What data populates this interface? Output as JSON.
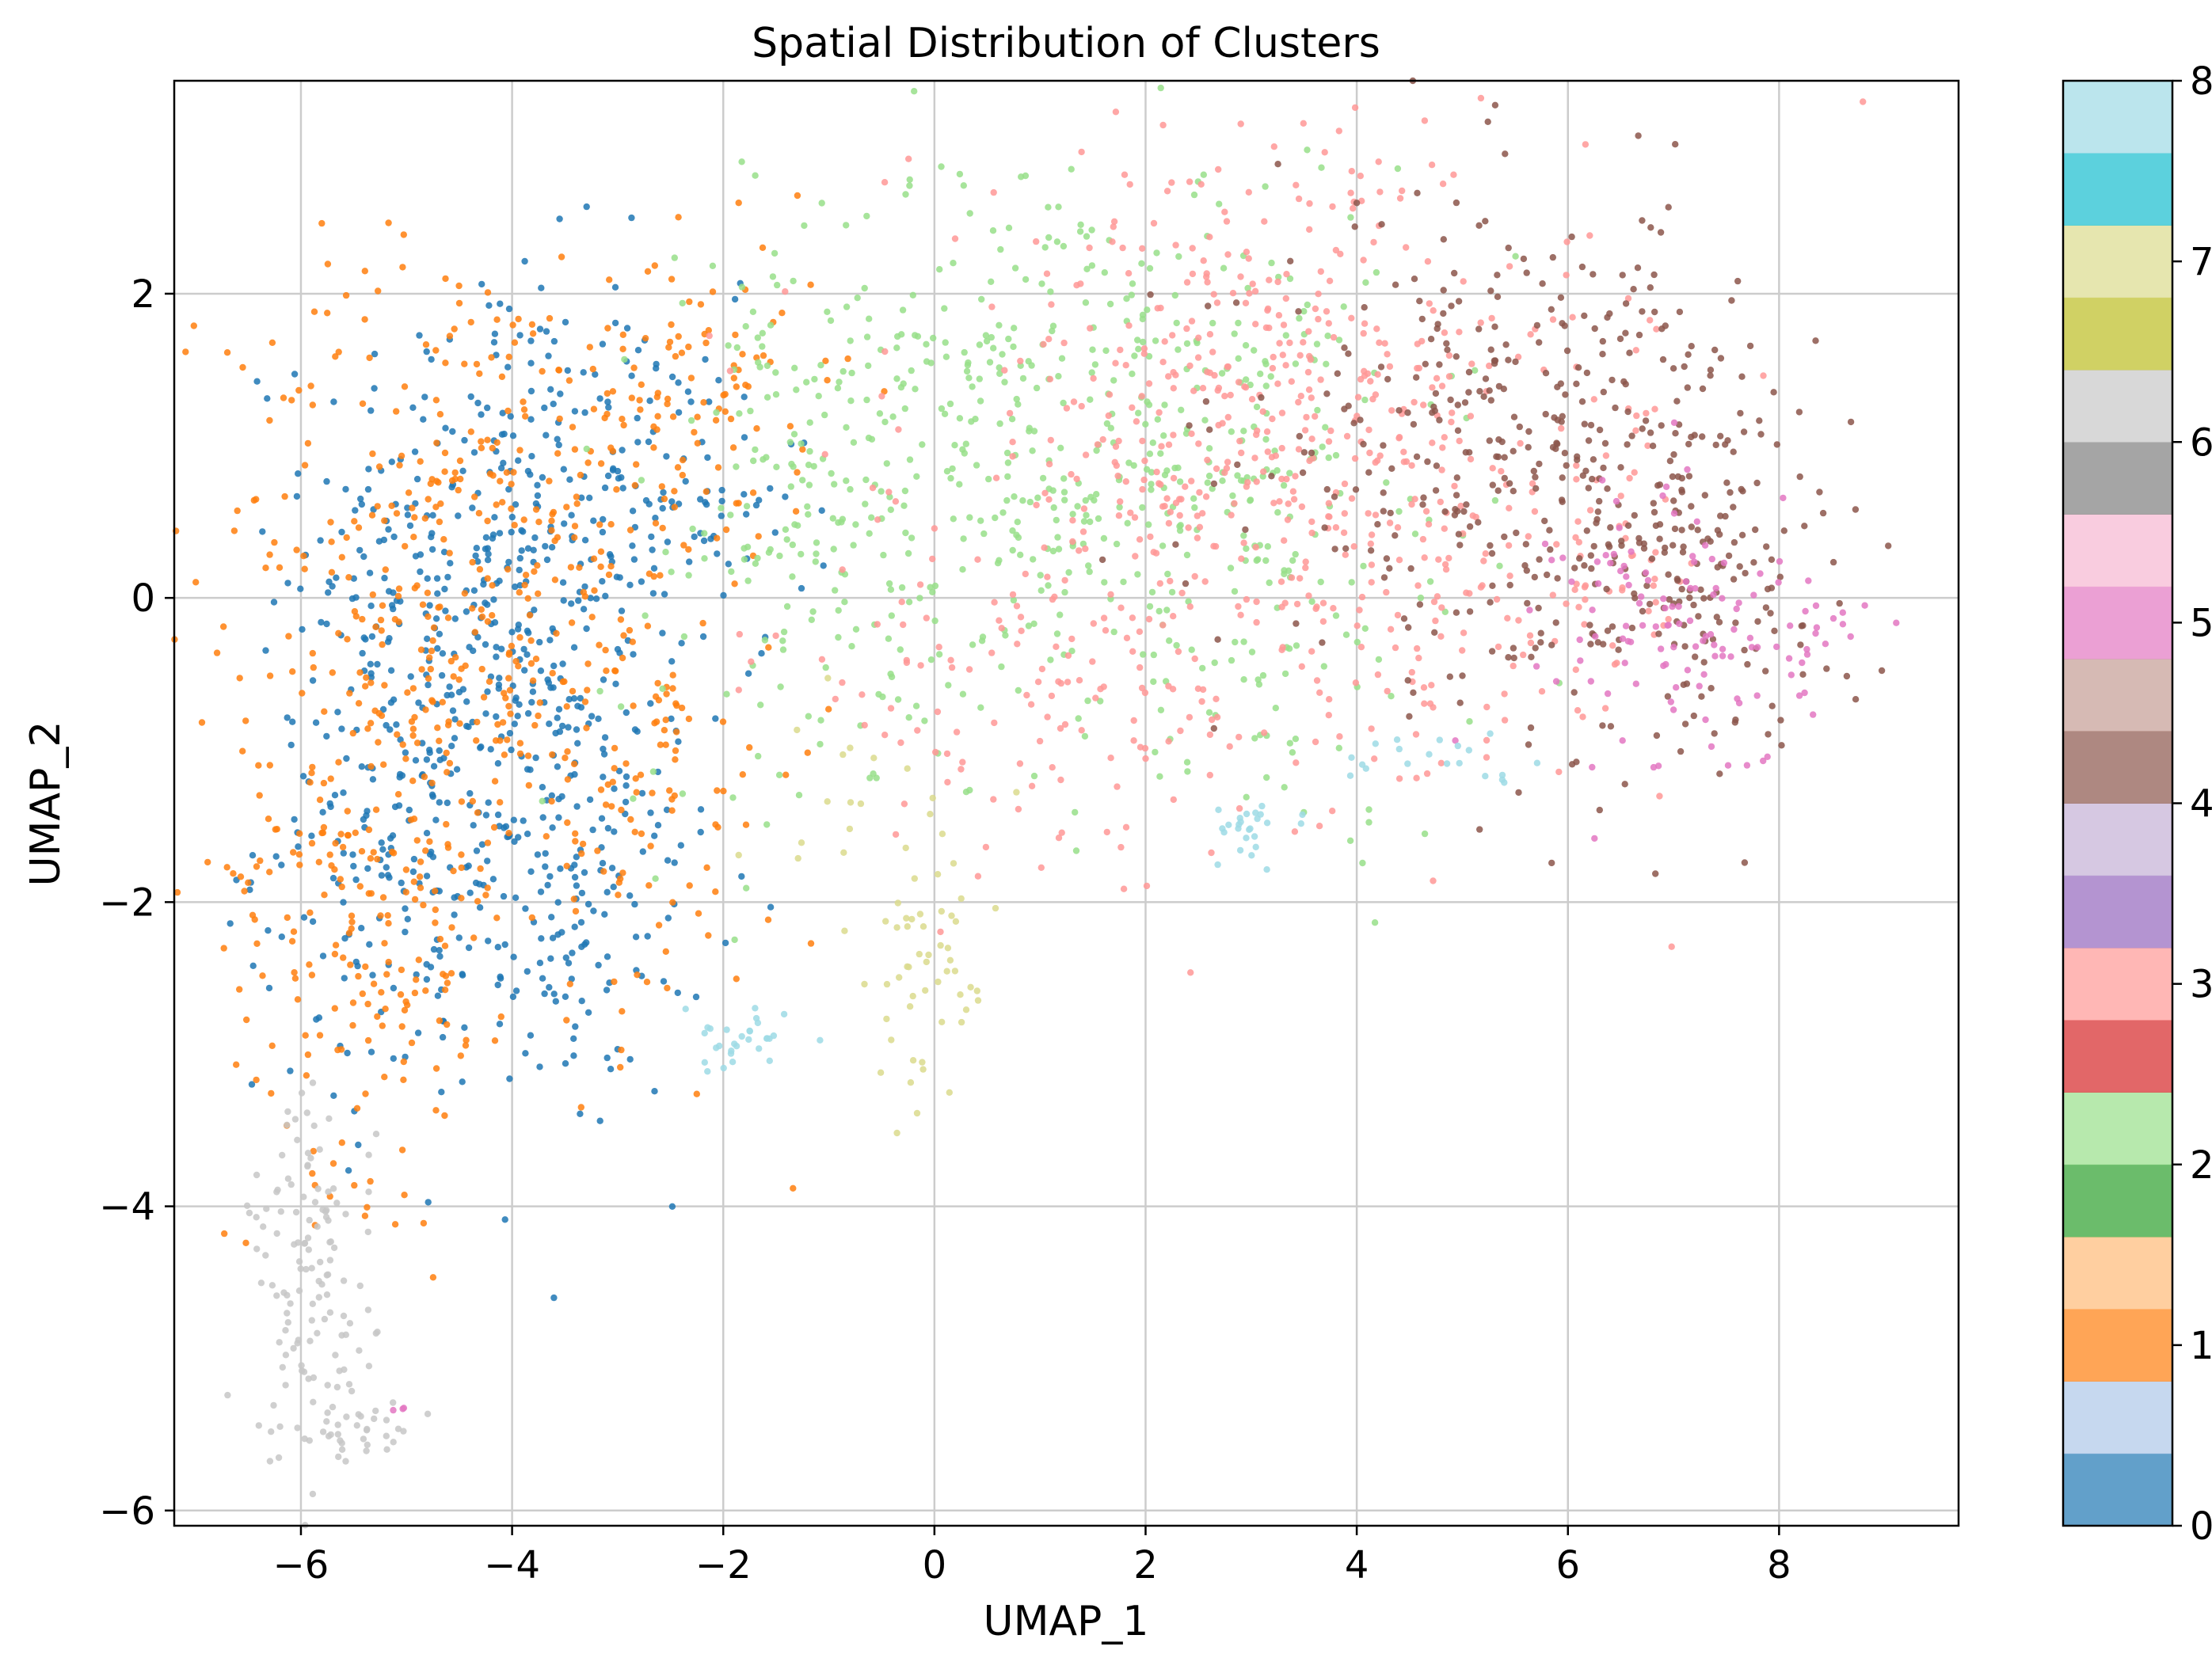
{
  "chart_data": {
    "type": "scatter",
    "title": "Spatial Distribution of Clusters",
    "xlabel": "UMAP_1",
    "ylabel": "UMAP_2",
    "xlim": [
      -7.2,
      9.7
    ],
    "ylim": [
      -6.1,
      3.4
    ],
    "xticks": [
      -6,
      -4,
      -2,
      0,
      2,
      4,
      6,
      8
    ],
    "yticks": [
      -6,
      -4,
      -2,
      0,
      2
    ],
    "grid": true,
    "colorbar": {
      "ticks": [
        0,
        1,
        2,
        3,
        4,
        5,
        6,
        7,
        8
      ],
      "range": [
        0,
        8
      ],
      "colormap": "tab20",
      "colors": [
        "#1f77b4",
        "#aec7e8",
        "#ff7f0e",
        "#ffbb78",
        "#2ca02c",
        "#98df8a",
        "#d62728",
        "#ff9896",
        "#9467bd",
        "#c5b0d5",
        "#8c564b",
        "#c49c94",
        "#e377c2",
        "#f7b6d2",
        "#7f7f7f",
        "#c7c7c7",
        "#bcbd22",
        "#dbdb8d",
        "#17becf",
        "#9edae5"
      ]
    },
    "series": [
      {
        "cluster": 0,
        "color": "#1f77b4",
        "regions": [
          {
            "cx": -4.1,
            "cy": 0.4,
            "sx": 0.9,
            "sy": 0.9,
            "n": 320
          },
          {
            "cx": -4.8,
            "cy": -1.5,
            "sx": 0.8,
            "sy": 0.9,
            "n": 280
          },
          {
            "cx": -3.3,
            "cy": -1.9,
            "sx": 0.6,
            "sy": 0.7,
            "n": 140
          },
          {
            "cx": -2.4,
            "cy": 0.6,
            "sx": 0.6,
            "sy": 0.6,
            "n": 80
          }
        ]
      },
      {
        "cluster": 1,
        "color": "#ff7f0e",
        "regions": [
          {
            "cx": -4.5,
            "cy": 0.6,
            "sx": 1.1,
            "sy": 0.9,
            "n": 260
          },
          {
            "cx": -5.3,
            "cy": -1.8,
            "sx": 0.7,
            "sy": 1.0,
            "n": 260
          },
          {
            "cx": -3.0,
            "cy": -1.0,
            "sx": 0.8,
            "sy": 1.0,
            "n": 160
          },
          {
            "cx": -2.2,
            "cy": 1.4,
            "sx": 0.6,
            "sy": 0.5,
            "n": 90
          }
        ]
      },
      {
        "cluster": 2,
        "color": "#98df8a",
        "regions": [
          {
            "cx": 1.2,
            "cy": 1.2,
            "sx": 1.5,
            "sy": 0.9,
            "n": 420
          },
          {
            "cx": -1.3,
            "cy": 0.4,
            "sx": 0.9,
            "sy": 1.0,
            "n": 140
          },
          {
            "cx": 2.8,
            "cy": 0.2,
            "sx": 1.2,
            "sy": 0.9,
            "n": 150
          }
        ]
      },
      {
        "cluster": 3,
        "color": "#ff9896",
        "regions": [
          {
            "cx": 3.0,
            "cy": 1.3,
            "sx": 1.6,
            "sy": 0.9,
            "n": 420
          },
          {
            "cx": 1.2,
            "cy": -0.6,
            "sx": 1.4,
            "sy": 0.6,
            "n": 140
          },
          {
            "cx": 5.0,
            "cy": 0.1,
            "sx": 1.2,
            "sy": 0.7,
            "n": 180
          }
        ]
      },
      {
        "cluster": 4,
        "color": "#8c564b",
        "regions": [
          {
            "cx": 5.6,
            "cy": 1.0,
            "sx": 1.2,
            "sy": 0.8,
            "n": 360
          },
          {
            "cx": 7.2,
            "cy": 0.2,
            "sx": 0.7,
            "sy": 0.6,
            "n": 160
          }
        ]
      },
      {
        "cluster": 5,
        "color": "#e377c2",
        "regions": [
          {
            "cx": 7.1,
            "cy": -0.2,
            "sx": 0.6,
            "sy": 0.5,
            "n": 120
          },
          {
            "cx": 8.5,
            "cy": -0.2,
            "sx": 0.2,
            "sy": 0.1,
            "n": 10
          },
          {
            "cx": -5.0,
            "cy": -5.3,
            "sx": 0.05,
            "sy": 0.08,
            "n": 3
          }
        ]
      },
      {
        "cluster": 6,
        "color": "#c7c7c7",
        "regions": [
          {
            "cx": -5.9,
            "cy": -4.5,
            "sx": 0.3,
            "sy": 0.6,
            "n": 130
          },
          {
            "cx": -5.4,
            "cy": -5.5,
            "sx": 0.3,
            "sy": 0.1,
            "n": 30
          }
        ]
      },
      {
        "cluster": 7,
        "color": "#dbdb8d",
        "regions": [
          {
            "cx": -0.1,
            "cy": -2.5,
            "sx": 0.25,
            "sy": 0.5,
            "n": 50
          },
          {
            "cx": -0.7,
            "cy": -1.5,
            "sx": 0.5,
            "sy": 0.4,
            "n": 20
          }
        ]
      },
      {
        "cluster": 8,
        "color": "#9edae5",
        "regions": [
          {
            "cx": -1.9,
            "cy": -2.95,
            "sx": 0.25,
            "sy": 0.12,
            "n": 30
          },
          {
            "cx": 3.0,
            "cy": -1.5,
            "sx": 0.25,
            "sy": 0.1,
            "n": 25
          },
          {
            "cx": 4.8,
            "cy": -1.1,
            "sx": 0.6,
            "sy": 0.1,
            "n": 20
          }
        ]
      }
    ]
  }
}
